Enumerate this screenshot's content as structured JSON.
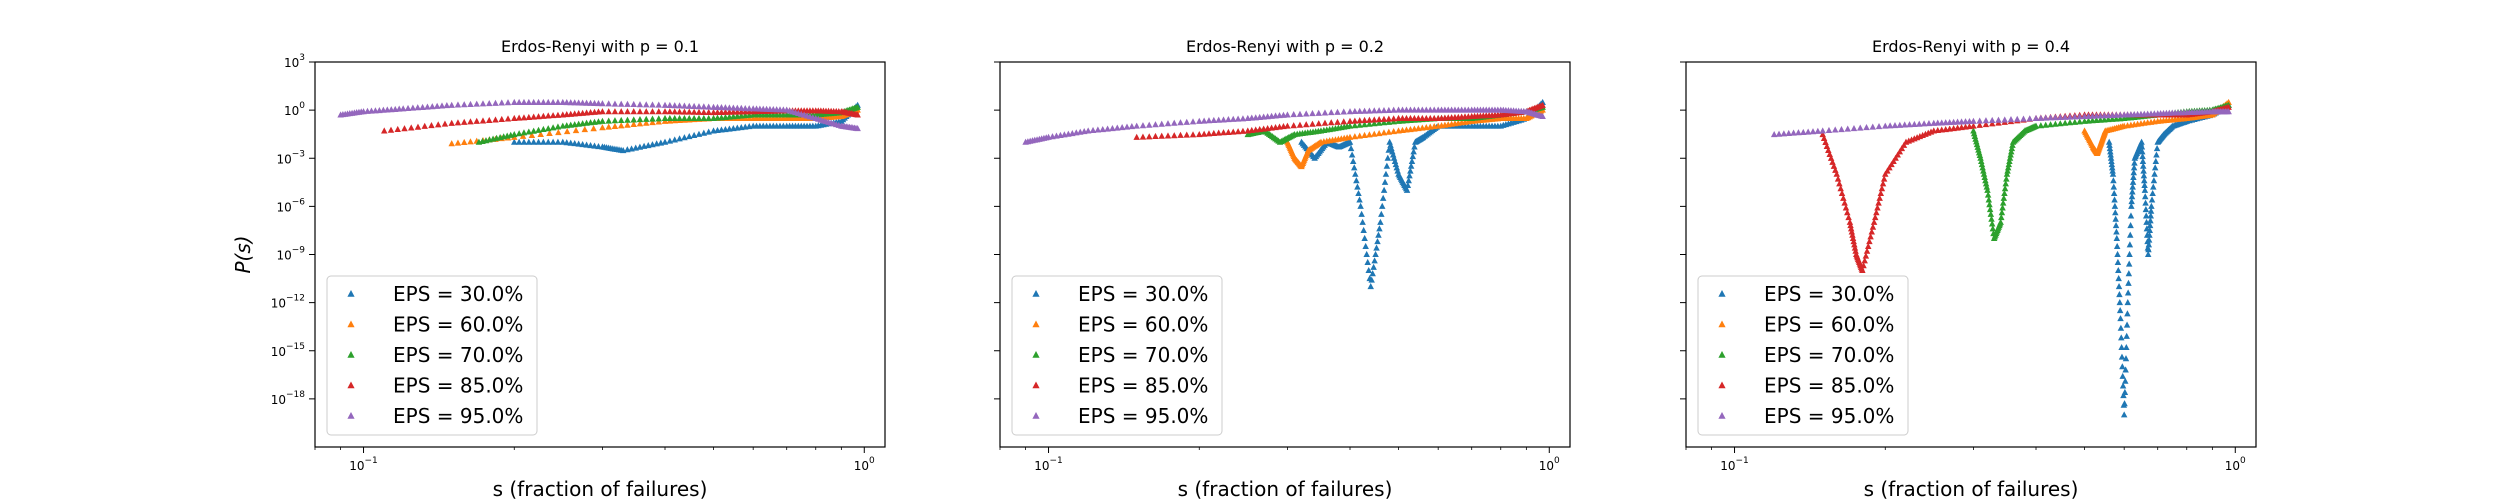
{
  "chart_data": [
    {
      "type": "scatter",
      "title": "Erdos-Renyi with p = 0.1",
      "xlabel": "s (fraction of failures)",
      "ylabel": "P(s)",
      "xscale": "log",
      "yscale": "log",
      "xlim": [
        0.08,
        1.1
      ],
      "ylim": [
        1e-21,
        1000.0
      ],
      "x_ticks": [
        "10^-1",
        "10^0"
      ],
      "y_ticks": [
        "10^3",
        "10^0",
        "10^-3",
        "10^-6",
        "10^-9",
        "10^-12",
        "10^-15",
        "10^-18"
      ],
      "legend": "lower-left",
      "series": [
        {
          "name": "EPS = 30.0%",
          "color": "#1f77b4",
          "x": [
            0.2,
            0.25,
            0.3,
            0.33,
            0.4,
            0.5,
            0.6,
            0.7,
            0.8,
            0.9,
            0.97
          ],
          "y": [
            0.01,
            0.01,
            0.005,
            0.003,
            0.01,
            0.05,
            0.1,
            0.1,
            0.1,
            0.2,
            2
          ]
        },
        {
          "name": "EPS = 60.0%",
          "color": "#ff7f0e",
          "x": [
            0.15,
            0.2,
            0.3,
            0.4,
            0.5,
            0.6,
            0.7,
            0.8,
            0.9,
            0.97
          ],
          "y": [
            0.008,
            0.02,
            0.08,
            0.2,
            0.3,
            0.3,
            0.3,
            0.3,
            0.4,
            1
          ]
        },
        {
          "name": "EPS = 70.0%",
          "color": "#2ca02c",
          "x": [
            0.17,
            0.2,
            0.25,
            0.3,
            0.4,
            0.5,
            0.6,
            0.7,
            0.8,
            0.9,
            0.97
          ],
          "y": [
            0.01,
            0.03,
            0.1,
            0.2,
            0.3,
            0.3,
            0.5,
            0.5,
            0.5,
            0.7,
            1.5
          ]
        },
        {
          "name": "EPS = 85.0%",
          "color": "#d62728",
          "x": [
            0.11,
            0.15,
            0.2,
            0.25,
            0.3,
            0.4,
            0.5,
            0.6,
            0.7,
            0.8,
            0.9,
            0.97
          ],
          "y": [
            0.05,
            0.15,
            0.3,
            0.5,
            0.8,
            0.8,
            0.7,
            0.8,
            0.9,
            0.9,
            0.8,
            0.5
          ]
        },
        {
          "name": "EPS = 95.0%",
          "color": "#9467bd",
          "x": [
            0.09,
            0.1,
            0.12,
            0.15,
            0.2,
            0.25,
            0.3,
            0.4,
            0.5,
            0.6,
            0.7,
            0.8,
            0.9,
            0.97
          ],
          "y": [
            0.5,
            0.8,
            1.2,
            2,
            3,
            3,
            2.5,
            2,
            1.5,
            1.2,
            1,
            0.3,
            0.1,
            0.07
          ]
        }
      ]
    },
    {
      "type": "scatter",
      "title": "Erdos-Renyi with p = 0.2",
      "xlabel": "s (fraction of failures)",
      "ylabel": "",
      "xscale": "log",
      "yscale": "log",
      "xlim": [
        0.08,
        1.1
      ],
      "ylim": [
        1e-21,
        1000.0
      ],
      "x_ticks": [
        "10^-1",
        "10^0"
      ],
      "legend": "lower-left",
      "series": [
        {
          "name": "EPS = 30.0%",
          "color": "#1f77b4",
          "x": [
            0.32,
            0.34,
            0.36,
            0.38,
            0.4,
            0.42,
            0.44,
            0.46,
            0.48,
            0.5,
            0.52,
            0.54,
            0.56,
            0.6,
            0.7,
            0.8,
            0.9,
            0.97
          ],
          "y": [
            0.01,
            0.001,
            0.01,
            0.005,
            0.01,
            1e-06,
            1e-11,
            1e-07,
            0.01,
            0.0001,
            1e-05,
            0.01,
            0.02,
            0.1,
            0.1,
            0.1,
            0.3,
            3
          ]
        },
        {
          "name": "EPS = 60.0%",
          "color": "#ff7f0e",
          "x": [
            0.3,
            0.31,
            0.32,
            0.33,
            0.35,
            0.4,
            0.5,
            0.6,
            0.7,
            0.8,
            0.9,
            0.97
          ],
          "y": [
            0.01,
            0.001,
            0.0003,
            0.003,
            0.01,
            0.02,
            0.05,
            0.1,
            0.2,
            0.3,
            0.3,
            1
          ]
        },
        {
          "name": "EPS = 70.0%",
          "color": "#2ca02c",
          "x": [
            0.25,
            0.27,
            0.29,
            0.31,
            0.35,
            0.4,
            0.5,
            0.6,
            0.7,
            0.8,
            0.9,
            0.97
          ],
          "y": [
            0.03,
            0.05,
            0.01,
            0.03,
            0.05,
            0.1,
            0.2,
            0.3,
            0.3,
            0.5,
            0.8,
            1.5
          ]
        },
        {
          "name": "EPS = 85.0%",
          "color": "#d62728",
          "x": [
            0.15,
            0.2,
            0.25,
            0.3,
            0.4,
            0.5,
            0.6,
            0.7,
            0.8,
            0.9,
            0.97
          ],
          "y": [
            0.02,
            0.03,
            0.05,
            0.1,
            0.2,
            0.3,
            0.3,
            0.4,
            0.5,
            0.8,
            2
          ]
        },
        {
          "name": "EPS = 95.0%",
          "color": "#9467bd",
          "x": [
            0.09,
            0.1,
            0.12,
            0.15,
            0.2,
            0.25,
            0.3,
            0.4,
            0.5,
            0.6,
            0.7,
            0.8,
            0.9,
            0.97
          ],
          "y": [
            0.01,
            0.02,
            0.05,
            0.1,
            0.2,
            0.3,
            0.5,
            0.8,
            1,
            1,
            1,
            1,
            0.8,
            0.4
          ]
        }
      ]
    },
    {
      "type": "scatter",
      "title": "Erdos-Renyi with p = 0.4",
      "xlabel": "s (fraction of failures)",
      "ylabel": "",
      "xscale": "log",
      "yscale": "log",
      "xlim": [
        0.08,
        1.1
      ],
      "ylim": [
        1e-21,
        1000.0
      ],
      "x_ticks": [
        "10^-1",
        "10^0"
      ],
      "legend": "lower-left",
      "series": [
        {
          "name": "EPS = 30.0%",
          "color": "#1f77b4",
          "x": [
            0.56,
            0.57,
            0.58,
            0.59,
            0.6,
            0.61,
            0.62,
            0.63,
            0.65,
            0.66,
            0.67,
            0.68,
            0.7,
            0.72,
            0.75,
            0.8,
            0.9,
            0.97
          ],
          "y": [
            0.01,
            0.0001,
            1e-08,
            1e-13,
            1e-19,
            1e-12,
            1e-06,
            0.001,
            0.01,
            1e-05,
            1e-09,
            1e-06,
            0.01,
            0.03,
            0.1,
            0.2,
            0.5,
            2
          ]
        },
        {
          "name": "EPS = 60.0%",
          "color": "#ff7f0e",
          "x": [
            0.5,
            0.52,
            0.53,
            0.54,
            0.55,
            0.6,
            0.7,
            0.8,
            0.9,
            0.97
          ],
          "y": [
            0.05,
            0.005,
            0.002,
            0.01,
            0.05,
            0.1,
            0.2,
            0.3,
            0.5,
            3
          ]
        },
        {
          "name": "EPS = 70.0%",
          "color": "#2ca02c",
          "x": [
            0.3,
            0.31,
            0.32,
            0.33,
            0.34,
            0.35,
            0.36,
            0.38,
            0.4,
            0.5,
            0.6,
            0.7,
            0.8,
            0.9,
            0.97
          ],
          "y": [
            0.05,
            0.001,
            1e-05,
            1e-08,
            1e-07,
            0.0001,
            0.01,
            0.05,
            0.1,
            0.2,
            0.3,
            0.5,
            0.8,
            1,
            2
          ]
        },
        {
          "name": "EPS = 85.0%",
          "color": "#d62728",
          "x": [
            0.15,
            0.16,
            0.17,
            0.175,
            0.18,
            0.19,
            0.2,
            0.22,
            0.25,
            0.3,
            0.4,
            0.5,
            0.6,
            0.7,
            0.8,
            0.9,
            0.97
          ],
          "y": [
            0.03,
            0.0001,
            1e-07,
            1e-09,
            1e-10,
            1e-07,
            0.0001,
            0.01,
            0.05,
            0.1,
            0.3,
            0.5,
            0.5,
            0.5,
            0.5,
            0.8,
            1.5
          ]
        },
        {
          "name": "EPS = 95.0%",
          "color": "#9467bd",
          "x": [
            0.12,
            0.15,
            0.2,
            0.25,
            0.3,
            0.4,
            0.5,
            0.6,
            0.7,
            0.8,
            0.9,
            0.97
          ],
          "y": [
            0.03,
            0.05,
            0.1,
            0.15,
            0.2,
            0.3,
            0.4,
            0.5,
            0.6,
            0.7,
            0.8,
            0.8
          ]
        }
      ]
    }
  ]
}
